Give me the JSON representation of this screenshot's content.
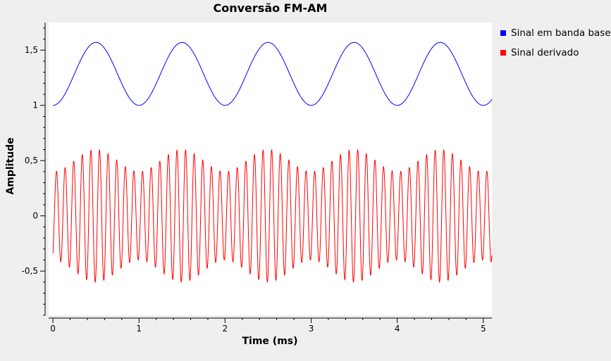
{
  "chart_data": {
    "type": "line",
    "title": "Conversão FM-AM",
    "xlabel": "Time (ms)",
    "ylabel": "Amplitude",
    "xlim": [
      -0.05,
      5.1
    ],
    "ylim": [
      -0.9,
      1.75
    ],
    "x_ticks": [
      0,
      1,
      2,
      3,
      4,
      5
    ],
    "x_tick_labels": [
      "0",
      "1",
      "2",
      "3",
      "4",
      "5"
    ],
    "y_ticks": [
      -0.5,
      0,
      0.5,
      1,
      1.5
    ],
    "y_tick_labels": [
      "-0,5",
      "0",
      "0,5",
      "1",
      "1,5"
    ],
    "legend_position": "right",
    "grid": false,
    "series": [
      {
        "name": "Sinal em banda base",
        "color": "#0000ff",
        "function": "offset + amplitude*(1 - cos(2*pi*frequency_khz*t))",
        "offset": 1.0,
        "amplitude": 0.285,
        "frequency_khz": 1,
        "x_range": [
          0,
          5.1
        ],
        "samples": 800
      },
      {
        "name": "Sinal derivado",
        "color": "#ff0000",
        "function": "-(envelope_center + envelope_depth*cos(2*pi*mod_frequency_khz*t + pi)) * cos(2*pi*carrier_frequency_khz*t + phase_rad)",
        "envelope_center": 0.5,
        "envelope_depth": 0.1,
        "carrier_frequency_khz": 10,
        "mod_frequency_khz": 1,
        "phase_rad": 0.55,
        "x_range": [
          0,
          5.1
        ],
        "samples": 3000
      }
    ]
  }
}
